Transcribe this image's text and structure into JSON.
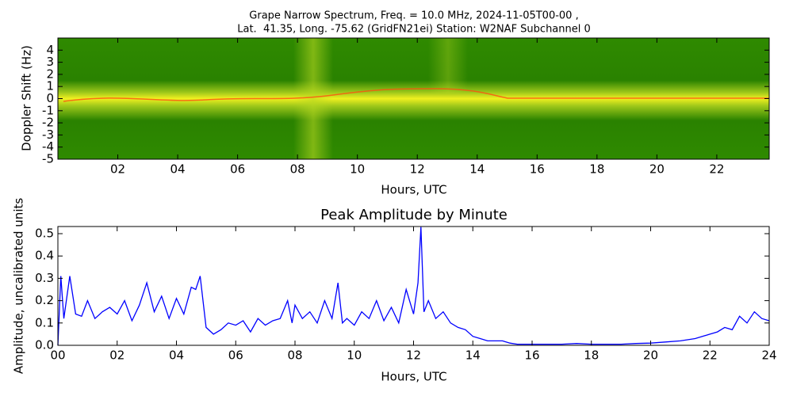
{
  "chart_data": [
    {
      "type": "spectrogram",
      "title": "Grape Narrow Spectrum, Freq. = 10.0 MHz, 2024-11-05T00-00 ,",
      "subtitle": "Lat.  41.35, Long. -75.62 (GridFN21ei) Station: W2NAF Subchannel 0",
      "xlabel": "Hours, UTC",
      "ylabel": "Doppler Shift (Hz)",
      "xlim": [
        0,
        23.75
      ],
      "xticks": [
        {
          "value": 2,
          "label": "02"
        },
        {
          "value": 4,
          "label": "04"
        },
        {
          "value": 6,
          "label": "06"
        },
        {
          "value": 8,
          "label": "08"
        },
        {
          "value": 10,
          "label": "10"
        },
        {
          "value": 12,
          "label": "12"
        },
        {
          "value": 14,
          "label": "14"
        },
        {
          "value": 16,
          "label": "16"
        },
        {
          "value": 18,
          "label": "18"
        },
        {
          "value": 20,
          "label": "20"
        },
        {
          "value": 22,
          "label": "22"
        }
      ],
      "ylim": [
        -5,
        5
      ],
      "yticks": [
        -5,
        -4,
        -3,
        -2,
        -1,
        0,
        1,
        2,
        3,
        4
      ]
    },
    {
      "type": "line",
      "title": "Peak Amplitude by Minute",
      "xlabel": "Hours, UTC",
      "ylabel": "Amplitude, uncalibrated units",
      "color": "#0000ff",
      "xlim": [
        0,
        24
      ],
      "xticks": [
        {
          "value": 0,
          "label": "00"
        },
        {
          "value": 2,
          "label": "02"
        },
        {
          "value": 4,
          "label": "04"
        },
        {
          "value": 6,
          "label": "06"
        },
        {
          "value": 8,
          "label": "08"
        },
        {
          "value": 10,
          "label": "10"
        },
        {
          "value": 12,
          "label": "12"
        },
        {
          "value": 14,
          "label": "14"
        },
        {
          "value": 16,
          "label": "16"
        },
        {
          "value": 18,
          "label": "18"
        },
        {
          "value": 20,
          "label": "20"
        },
        {
          "value": 22,
          "label": "22"
        },
        {
          "value": 24,
          "label": "24"
        }
      ],
      "ylim": [
        0,
        0.532
      ],
      "yticks": [
        {
          "value": 0,
          "label": "0.0"
        },
        0.1,
        0.2,
        0.3,
        0.4,
        0.5
      ],
      "x": [
        0,
        0.1,
        0.2,
        0.4,
        0.6,
        0.8,
        1,
        1.25,
        1.5,
        1.75,
        2,
        2.25,
        2.5,
        2.75,
        3,
        3.25,
        3.5,
        3.75,
        4,
        4.25,
        4.5,
        4.65,
        4.8,
        5,
        5.25,
        5.5,
        5.75,
        6,
        6.25,
        6.5,
        6.75,
        7,
        7.25,
        7.5,
        7.75,
        7.9,
        8,
        8.25,
        8.5,
        8.75,
        9,
        9.25,
        9.45,
        9.6,
        9.75,
        10,
        10.25,
        10.5,
        10.75,
        11,
        11.25,
        11.5,
        11.75,
        12,
        12.15,
        12.25,
        12.35,
        12.5,
        12.75,
        13,
        13.25,
        13.5,
        13.75,
        14,
        14.25,
        14.5,
        14.75,
        15,
        15.25,
        15.5,
        16,
        16.5,
        17,
        17.5,
        18,
        18.5,
        19,
        19.5,
        20,
        20.5,
        21,
        21.5,
        22,
        22.25,
        22.5,
        22.75,
        23,
        23.25,
        23.5,
        23.75,
        24
      ],
      "values": [
        0,
        0.31,
        0.12,
        0.31,
        0.14,
        0.13,
        0.2,
        0.12,
        0.15,
        0.17,
        0.14,
        0.2,
        0.11,
        0.18,
        0.28,
        0.15,
        0.22,
        0.12,
        0.21,
        0.14,
        0.26,
        0.25,
        0.31,
        0.08,
        0.05,
        0.07,
        0.1,
        0.09,
        0.11,
        0.06,
        0.12,
        0.09,
        0.11,
        0.12,
        0.2,
        0.1,
        0.18,
        0.12,
        0.15,
        0.1,
        0.2,
        0.12,
        0.28,
        0.1,
        0.12,
        0.09,
        0.15,
        0.12,
        0.2,
        0.11,
        0.17,
        0.1,
        0.25,
        0.14,
        0.28,
        0.53,
        0.15,
        0.2,
        0.12,
        0.15,
        0.1,
        0.08,
        0.07,
        0.04,
        0.03,
        0.02,
        0.02,
        0.02,
        0.01,
        0.005,
        0.005,
        0.005,
        0.005,
        0.008,
        0.005,
        0.005,
        0.005,
        0.008,
        0.01,
        0.015,
        0.02,
        0.03,
        0.05,
        0.06,
        0.08,
        0.07,
        0.13,
        0.1,
        0.15,
        0.12,
        0.11
      ]
    }
  ]
}
